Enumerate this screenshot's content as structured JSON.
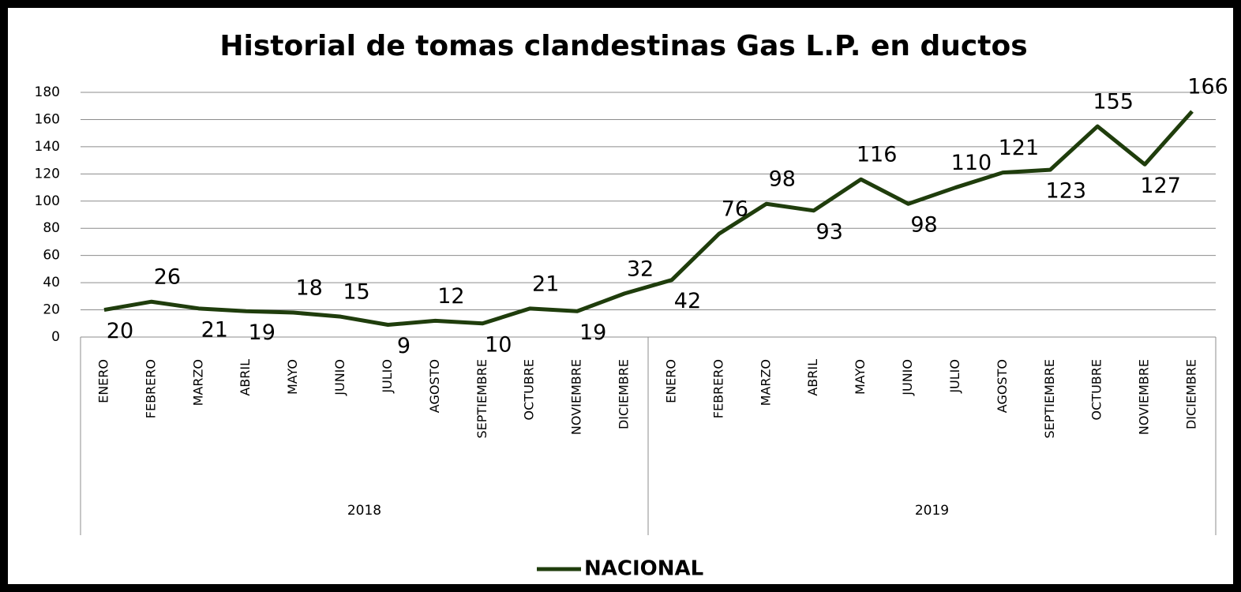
{
  "chart_data": {
    "type": "line",
    "title": "Historial de tomas clandestinas Gas L.P. en ductos",
    "categories": [
      "ENERO",
      "FEBRERO",
      "MARZO",
      "ABRIL",
      "MAYO",
      "JUNIO",
      "JULIO",
      "AGOSTO",
      "SEPTIEMBRE",
      "OCTUBRE",
      "NOVIEMBRE",
      "DICIEMBRE",
      "ENERO",
      "FEBRERO",
      "MARZO",
      "ABRIL",
      "MAYO",
      "JUNIO",
      "JULIO",
      "AGOSTO",
      "SEPTIEMBRE",
      "OCTUBRE",
      "NOVIEMBRE",
      "DICIEMBRE"
    ],
    "category_groups": [
      "2018",
      "2019"
    ],
    "series": [
      {
        "name": "NACIONAL",
        "color": "#1f3d0c",
        "values": [
          20,
          26,
          21,
          19,
          18,
          15,
          9,
          12,
          10,
          21,
          19,
          32,
          42,
          76,
          98,
          93,
          116,
          98,
          110,
          121,
          123,
          155,
          127,
          166
        ]
      }
    ],
    "ylim": [
      0,
      180
    ],
    "yticks": [
      0,
      20,
      40,
      60,
      80,
      100,
      120,
      140,
      160,
      180
    ],
    "grid": true,
    "legend": "bottom"
  }
}
